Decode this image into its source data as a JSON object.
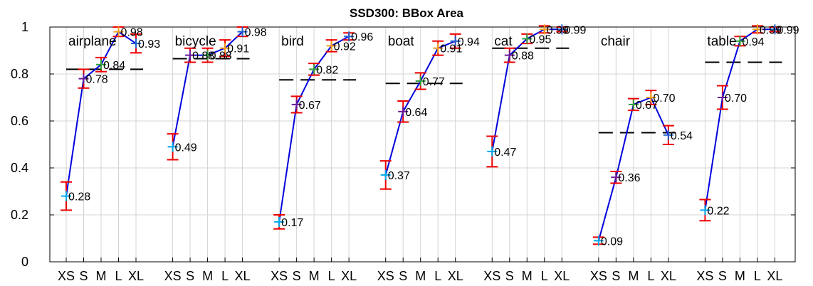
{
  "chart_data": {
    "type": "line",
    "title": "SSD300: BBox Area",
    "xlabel": "",
    "ylabel": "",
    "ylim": [
      0,
      1
    ],
    "yticks": [
      "0",
      "0.2",
      "0.4",
      "0.6",
      "0.8",
      "1"
    ],
    "size_labels": [
      "XS",
      "S",
      "M",
      "L",
      "XL"
    ],
    "grid": true,
    "colors": {
      "line": "#0000dd",
      "average": "#000000",
      "errorbar": "#ee0000",
      "markers": [
        "#00aaee",
        "#6a1b9a",
        "#2e9e3f",
        "#f0a020",
        "#2060d0"
      ]
    },
    "groups": [
      {
        "category": "airplane",
        "values": [
          0.28,
          0.78,
          0.84,
          0.98,
          0.93
        ],
        "errors": [
          0.06,
          0.04,
          0.03,
          0.02,
          0.04
        ],
        "labels": [
          "0.28",
          "0.78",
          "0.84",
          "0.98",
          "0.93"
        ],
        "avg": 0.82
      },
      {
        "category": "bicycle",
        "values": [
          0.49,
          0.88,
          0.88,
          0.91,
          0.98
        ],
        "errors": [
          0.055,
          0.03,
          0.03,
          0.035,
          0.02
        ],
        "labels": [
          "0.49",
          "0.88",
          "0.88",
          "0.91",
          "0.98"
        ],
        "avg": 0.865
      },
      {
        "category": "bird",
        "values": [
          0.17,
          0.67,
          0.82,
          0.92,
          0.96
        ],
        "errors": [
          0.03,
          0.035,
          0.025,
          0.025,
          0.015
        ],
        "labels": [
          "0.17",
          "0.67",
          "0.82",
          "0.92",
          "0.96"
        ],
        "avg": 0.775
      },
      {
        "category": "boat",
        "values": [
          0.37,
          0.64,
          0.77,
          0.91,
          0.94
        ],
        "errors": [
          0.06,
          0.045,
          0.035,
          0.03,
          0.03
        ],
        "labels": [
          "0.37",
          "0.64",
          "0.77",
          "0.91",
          "0.94"
        ],
        "avg": 0.76
      },
      {
        "category": "cat",
        "values": [
          0.47,
          0.88,
          0.95,
          0.99,
          0.99
        ],
        "errors": [
          0.065,
          0.03,
          0.02,
          0.015,
          0.01
        ],
        "labels": [
          "0.47",
          "0.88",
          "0.95",
          "0.99",
          "0.99"
        ],
        "avg": 0.91
      },
      {
        "category": "chair",
        "values": [
          0.09,
          0.36,
          0.67,
          0.7,
          0.54
        ],
        "errors": [
          0.015,
          0.025,
          0.025,
          0.03,
          0.04
        ],
        "labels": [
          "0.09",
          "0.36",
          "0.67",
          "0.70",
          "0.54"
        ],
        "avg": 0.55
      },
      {
        "category": "table",
        "values": [
          0.22,
          0.7,
          0.94,
          0.99,
          0.99
        ],
        "errors": [
          0.045,
          0.05,
          0.02,
          0.015,
          0.01
        ],
        "labels": [
          "0.22",
          "0.70",
          "0.94",
          "0.99",
          "0.99"
        ],
        "avg": 0.85
      }
    ]
  }
}
